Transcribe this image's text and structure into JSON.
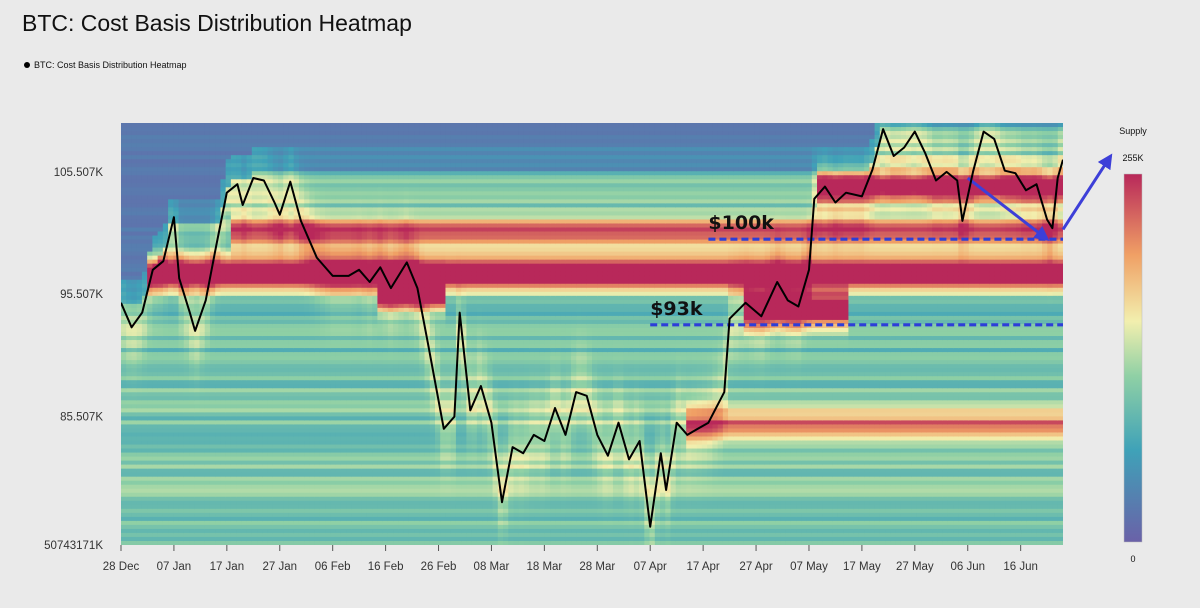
{
  "title": "BTC: Cost Basis Distribution Heatmap",
  "legend": {
    "label": "BTC: Cost Basis Distribution Heatmap"
  },
  "colorbar": {
    "title": "Supply",
    "max_label": "255K",
    "min_label": "0"
  },
  "chart_data": {
    "type": "heatmap",
    "title": "BTC: Cost Basis Distribution Heatmap",
    "xlabel": "",
    "ylabel": "",
    "x_ticks": [
      "28 Dec",
      "07 Jan",
      "17 Jan",
      "27 Jan",
      "06 Feb",
      "16 Feb",
      "26 Feb",
      "08 Mar",
      "18 Mar",
      "28 Mar",
      "07 Apr",
      "17 Apr",
      "27 Apr",
      "07 May",
      "17 May",
      "27 May",
      "06 Jun",
      "16 Jun"
    ],
    "y_ticks": [
      "105.507K",
      "95.507K",
      "85.507K",
      "50743171K"
    ],
    "xlim": [
      "2024-12-28",
      "2025-06-24"
    ],
    "ylim": [
      75000,
      109500
    ],
    "colorscale": {
      "min": 0,
      "max": 255000
    },
    "price_series": {
      "name": "BTC: Cost Basis Distribution Heatmap",
      "color": "#000000",
      "values": [
        [
          "2024-12-28",
          94800
        ],
        [
          "2024-12-30",
          92800
        ],
        [
          "2025-01-01",
          94000
        ],
        [
          "2025-01-03",
          97500
        ],
        [
          "2025-01-05",
          98200
        ],
        [
          "2025-01-07",
          101800
        ],
        [
          "2025-01-08",
          96800
        ],
        [
          "2025-01-10",
          94000
        ],
        [
          "2025-01-11",
          92500
        ],
        [
          "2025-01-13",
          95000
        ],
        [
          "2025-01-15",
          99500
        ],
        [
          "2025-01-17",
          103800
        ],
        [
          "2025-01-19",
          104500
        ],
        [
          "2025-01-20",
          102800
        ],
        [
          "2025-01-22",
          105000
        ],
        [
          "2025-01-24",
          104800
        ],
        [
          "2025-01-26",
          103000
        ],
        [
          "2025-01-27",
          102000
        ],
        [
          "2025-01-29",
          104700
        ],
        [
          "2025-01-31",
          101500
        ],
        [
          "2025-02-03",
          98500
        ],
        [
          "2025-02-06",
          97000
        ],
        [
          "2025-02-09",
          97000
        ],
        [
          "2025-02-11",
          97500
        ],
        [
          "2025-02-13",
          96500
        ],
        [
          "2025-02-15",
          97700
        ],
        [
          "2025-02-17",
          96000
        ],
        [
          "2025-02-20",
          98100
        ],
        [
          "2025-02-22",
          96000
        ],
        [
          "2025-02-24",
          91500
        ],
        [
          "2025-02-27",
          84500
        ],
        [
          "2025-03-01",
          85500
        ],
        [
          "2025-03-02",
          94000
        ],
        [
          "2025-03-04",
          86000
        ],
        [
          "2025-03-06",
          88000
        ],
        [
          "2025-03-08",
          85000
        ],
        [
          "2025-03-10",
          78500
        ],
        [
          "2025-03-12",
          83000
        ],
        [
          "2025-03-14",
          82500
        ],
        [
          "2025-03-16",
          84000
        ],
        [
          "2025-03-18",
          83500
        ],
        [
          "2025-03-20",
          86200
        ],
        [
          "2025-03-22",
          84000
        ],
        [
          "2025-03-24",
          87500
        ],
        [
          "2025-03-26",
          87200
        ],
        [
          "2025-03-28",
          84000
        ],
        [
          "2025-03-30",
          82300
        ],
        [
          "2025-04-01",
          85000
        ],
        [
          "2025-04-03",
          82000
        ],
        [
          "2025-04-05",
          83500
        ],
        [
          "2025-04-07",
          76500
        ],
        [
          "2025-04-09",
          82500
        ],
        [
          "2025-04-10",
          79500
        ],
        [
          "2025-04-12",
          85000
        ],
        [
          "2025-04-14",
          84000
        ],
        [
          "2025-04-16",
          84500
        ],
        [
          "2025-04-18",
          85000
        ],
        [
          "2025-04-21",
          87500
        ],
        [
          "2025-04-22",
          93500
        ],
        [
          "2025-04-25",
          94800
        ],
        [
          "2025-04-28",
          93700
        ],
        [
          "2025-05-01",
          96500
        ],
        [
          "2025-05-03",
          95000
        ],
        [
          "2025-05-05",
          94500
        ],
        [
          "2025-05-07",
          97500
        ],
        [
          "2025-05-08",
          103300
        ],
        [
          "2025-05-10",
          104300
        ],
        [
          "2025-05-12",
          103000
        ],
        [
          "2025-05-14",
          103800
        ],
        [
          "2025-05-17",
          103500
        ],
        [
          "2025-05-19",
          105700
        ],
        [
          "2025-05-21",
          109000
        ],
        [
          "2025-05-23",
          106800
        ],
        [
          "2025-05-25",
          107500
        ],
        [
          "2025-05-27",
          108800
        ],
        [
          "2025-05-29",
          107000
        ],
        [
          "2025-05-31",
          104800
        ],
        [
          "2025-06-02",
          105500
        ],
        [
          "2025-06-04",
          104800
        ],
        [
          "2025-06-05",
          101500
        ],
        [
          "2025-06-07",
          105500
        ],
        [
          "2025-06-09",
          108800
        ],
        [
          "2025-06-11",
          108200
        ],
        [
          "2025-06-13",
          105600
        ],
        [
          "2025-06-15",
          105400
        ],
        [
          "2025-06-17",
          104000
        ],
        [
          "2025-06-19",
          104500
        ],
        [
          "2025-06-21",
          101600
        ],
        [
          "2025-06-22",
          100900
        ],
        [
          "2025-06-23",
          105000
        ],
        [
          "2025-06-24",
          106500
        ]
      ]
    },
    "annotations": [
      {
        "text": "$100k",
        "price": 100000,
        "x_start": "2025-04-18",
        "x_end": "2025-06-24",
        "line_color": "#2d3ed8"
      },
      {
        "text": "$93k",
        "price": 93000,
        "x_start": "2025-04-07",
        "x_end": "2025-06-24",
        "line_color": "#2d3ed8"
      }
    ],
    "cost_basis_clusters": [
      {
        "price": 97200,
        "start": "2025-01-02",
        "end": "2025-06-24",
        "intensity": 0.82
      },
      {
        "price": 95600,
        "start": "2025-02-14",
        "end": "2025-02-27",
        "intensity": 0.95
      },
      {
        "price": 94300,
        "start": "2025-04-25",
        "end": "2025-05-14",
        "intensity": 0.88
      },
      {
        "price": 100500,
        "start": "2025-01-18",
        "end": "2025-06-24",
        "intensity": 0.55
      },
      {
        "price": 104300,
        "start": "2025-05-09",
        "end": "2025-06-24",
        "intensity": 0.62
      },
      {
        "price": 84700,
        "start": "2025-04-14",
        "end": "2025-06-24",
        "intensity": 0.5
      }
    ],
    "arrows": [
      {
        "color": "#3d3fd8",
        "from": [
          "2025-06-06",
          105000
        ],
        "to": [
          "2025-06-21",
          100000
        ]
      },
      {
        "color": "#3d3fd8",
        "from": [
          "2025-06-24",
          100800
        ],
        "to": [
          "2025-07-03",
          106800
        ]
      }
    ]
  }
}
